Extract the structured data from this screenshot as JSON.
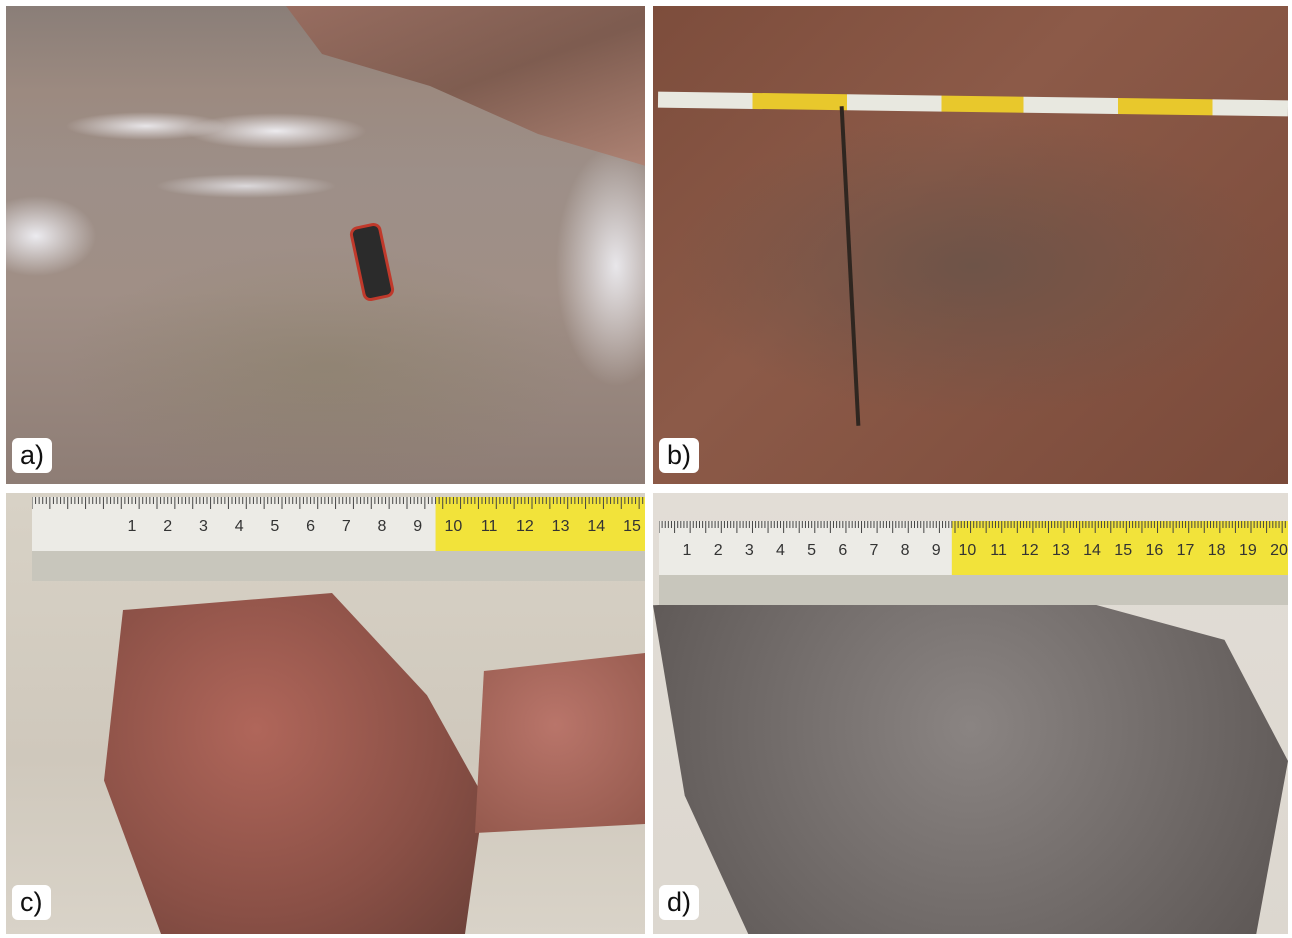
{
  "panels": [
    {
      "label": "a)"
    },
    {
      "label": "b)"
    },
    {
      "label": "c)",
      "ruler": [
        "1",
        "2",
        "3",
        "4",
        "5",
        "6",
        "7",
        "8",
        "9",
        "10",
        "11",
        "12",
        "13",
        "14",
        "15"
      ]
    },
    {
      "label": "d)",
      "ruler": [
        "1",
        "2",
        "3",
        "4",
        "5",
        "6",
        "7",
        "8",
        "9",
        "10",
        "11",
        "12",
        "13",
        "14",
        "15",
        "16",
        "17",
        "18",
        "19",
        "20"
      ]
    }
  ]
}
